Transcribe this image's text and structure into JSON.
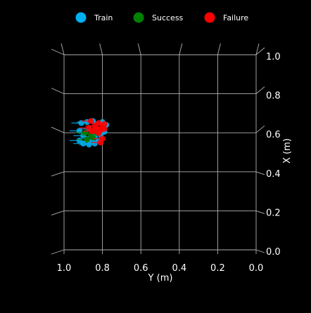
{
  "chart_data": {
    "type": "scatter",
    "title": "",
    "xlabel": "Y (m)",
    "ylabel": "X (m)",
    "x_ticks": [
      "1.0",
      "0.8",
      "0.6",
      "0.4",
      "0.2",
      "0.0"
    ],
    "y_ticks": [
      "0.0",
      "0.2",
      "0.4",
      "0.6",
      "0.8",
      "1.0"
    ],
    "xlim": [
      1.0,
      0.0
    ],
    "ylim": [
      0.0,
      1.0
    ],
    "grid": true,
    "legend_position": "top",
    "background": "#000000",
    "series": [
      {
        "name": "Train",
        "color": "#00b0f0",
        "points": [
          {
            "x": 0.91,
            "y": 0.65
          },
          {
            "x": 0.88,
            "y": 0.655
          },
          {
            "x": 0.85,
            "y": 0.66
          },
          {
            "x": 0.8,
            "y": 0.655
          },
          {
            "x": 0.78,
            "y": 0.64
          },
          {
            "x": 0.92,
            "y": 0.61
          },
          {
            "x": 0.87,
            "y": 0.62
          },
          {
            "x": 0.83,
            "y": 0.615
          },
          {
            "x": 0.79,
            "y": 0.605
          },
          {
            "x": 0.9,
            "y": 0.585
          },
          {
            "x": 0.84,
            "y": 0.58
          },
          {
            "x": 0.81,
            "y": 0.59
          },
          {
            "x": 0.92,
            "y": 0.56
          },
          {
            "x": 0.86,
            "y": 0.555
          },
          {
            "x": 0.82,
            "y": 0.56
          },
          {
            "x": 0.9,
            "y": 0.545
          },
          {
            "x": 0.87,
            "y": 0.54
          },
          {
            "x": 0.84,
            "y": 0.545
          }
        ]
      },
      {
        "name": "Success",
        "color": "#008000",
        "points": [
          {
            "x": 0.89,
            "y": 0.6
          },
          {
            "x": 0.85,
            "y": 0.575
          },
          {
            "x": 0.88,
            "y": 0.565
          },
          {
            "x": 0.83,
            "y": 0.6
          },
          {
            "x": 0.86,
            "y": 0.59
          }
        ]
      },
      {
        "name": "Failure",
        "color": "#ff0000",
        "points": [
          {
            "x": 0.86,
            "y": 0.66
          },
          {
            "x": 0.82,
            "y": 0.65
          },
          {
            "x": 0.79,
            "y": 0.645
          },
          {
            "x": 0.84,
            "y": 0.635
          },
          {
            "x": 0.8,
            "y": 0.63
          },
          {
            "x": 0.87,
            "y": 0.625
          },
          {
            "x": 0.83,
            "y": 0.622
          },
          {
            "x": 0.81,
            "y": 0.612
          },
          {
            "x": 0.85,
            "y": 0.608
          },
          {
            "x": 0.79,
            "y": 0.62
          },
          {
            "x": 0.82,
            "y": 0.598
          },
          {
            "x": 0.8,
            "y": 0.57
          },
          {
            "x": 0.81,
            "y": 0.55
          }
        ]
      }
    ]
  }
}
